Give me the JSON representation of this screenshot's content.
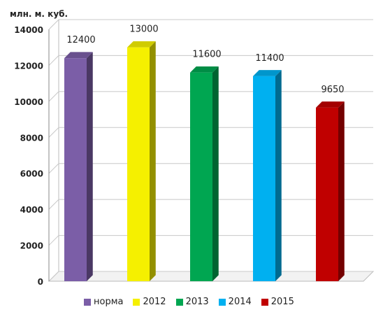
{
  "chart_data": {
    "type": "bar",
    "ylabel": "млн. м. куб.",
    "ylim": [
      0,
      14000
    ],
    "yticks": [
      0,
      2000,
      4000,
      6000,
      8000,
      10000,
      12000,
      14000
    ],
    "grid": true,
    "legend_position": "bottom",
    "series": [
      {
        "name": "норма",
        "value": 12400,
        "label": "12400",
        "color": "#7b5ea7"
      },
      {
        "name": "2012",
        "value": 13000,
        "label": "13000",
        "color": "#f5f000"
      },
      {
        "name": "2013",
        "value": 11600,
        "label": "11600",
        "color": "#00a651"
      },
      {
        "name": "2014",
        "value": 11400,
        "label": "11400",
        "color": "#00b0f0"
      },
      {
        "name": "2015",
        "value": 9650,
        "label": "9650",
        "color": "#c00000"
      }
    ]
  }
}
